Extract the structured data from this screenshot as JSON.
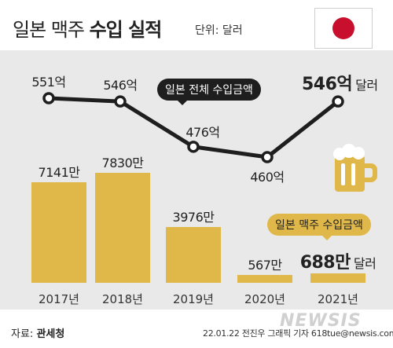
{
  "title_normal": "일본 맥주",
  "title_bold": "수입 실적",
  "unit_label": "단위: 달러",
  "icons": {
    "flag": "japan-flag-icon",
    "mug": "beer-mug-icon"
  },
  "colors": {
    "bar": "#e0b84a",
    "line": "#1e1e1e",
    "panel": "#e9e9e9",
    "flag_red": "#c8102e"
  },
  "annotations": {
    "total": "일본 전체 수입금액",
    "beer": "일본 맥주 수입금액",
    "currency_word": "달러"
  },
  "chart_data": {
    "type": "bar+line",
    "categories": [
      "2017년",
      "2018년",
      "2019년",
      "2020년",
      "2021년"
    ],
    "series": [
      {
        "name": "일본 맥주 수입금액",
        "kind": "bar",
        "values": [
          7141,
          7830,
          3976,
          567,
          688
        ],
        "labels": [
          "7141만",
          "7830만",
          "3976만",
          "567만",
          "688만"
        ]
      },
      {
        "name": "일본 전체 수입금액",
        "kind": "line",
        "values": [
          551,
          546,
          476,
          460,
          546
        ],
        "labels": [
          "551억",
          "546억",
          "476억",
          "460억",
          "546억"
        ]
      }
    ]
  },
  "footer": {
    "source_prefix": "자료:",
    "source_name": "관세청",
    "credit": "22.01.22 전진우 그래픽 기자 618tue@newsis.com",
    "watermark": "NEWSIS"
  }
}
